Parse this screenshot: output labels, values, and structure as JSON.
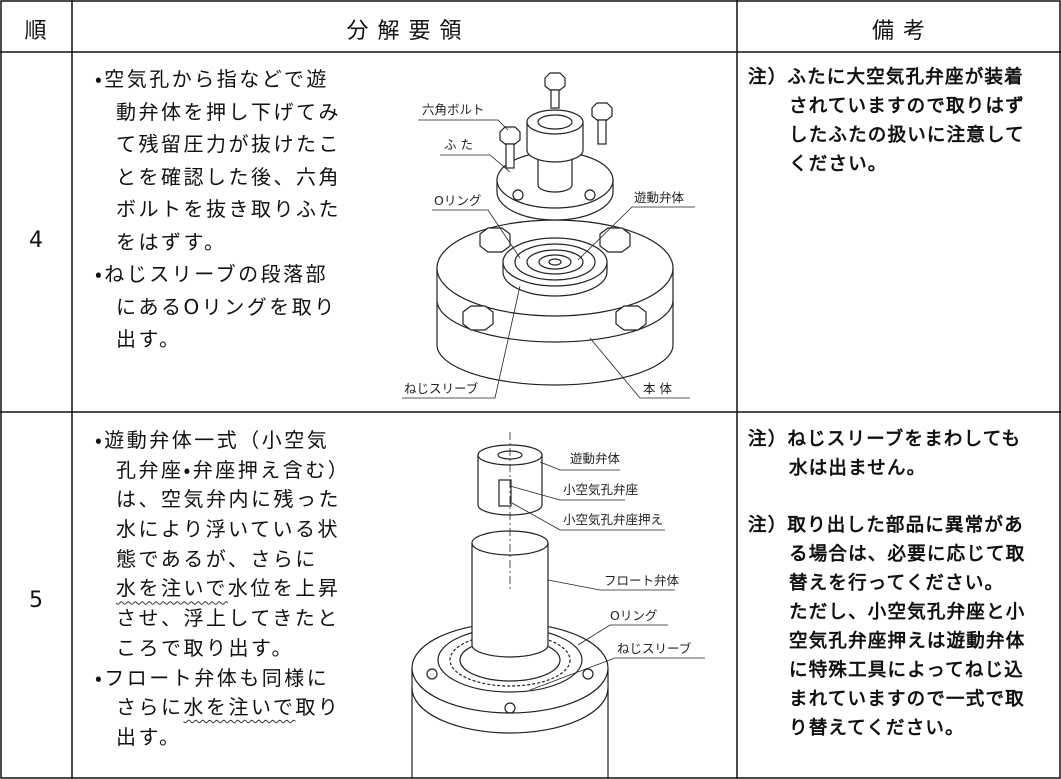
{
  "header": {
    "order": "順",
    "procedure": "分 解 要 領",
    "remarks": "備 考"
  },
  "rows": [
    {
      "step": "4",
      "procedure": [
        "・空気孔から指などで遊",
        "動弁体を押し下げてみ",
        "て残留圧力が抜けたこ",
        "とを確認した後、六角",
        "ボルトを抜き取りふた",
        "をはずす。",
        "・ねじスリーブの段落部",
        "にあるOリングを取り",
        "出す。"
      ],
      "figure_labels": [
        "六角ボルト",
        "ふ た",
        "Oリング",
        "遊動弁体",
        "ねじスリーブ",
        "本 体"
      ],
      "remarks": [
        [
          "注）ふたに大空気孔弁座が装着",
          "されていますので取りはず",
          "したふたの扱いに注意して",
          "ください。"
        ]
      ]
    },
    {
      "step": "5",
      "procedure": [
        "・遊動弁体一式（小空気",
        "孔弁座・弁座押え含む）",
        "は、空気弁内に残った",
        "水により浮いている状",
        "態であるが、さらに",
        [
          "水を注いで",
          "水位を上昇"
        ],
        "させ、浮上してきたと",
        "ころで取り出す。",
        "・フロート弁体も同様に",
        [
          "さらに",
          "水を注いで",
          "取り"
        ],
        "出す。"
      ],
      "figure_labels": [
        "遊動弁体",
        "小空気孔弁座",
        "小空気孔弁座押え",
        "フロート弁体",
        "Oリング",
        "ねじスリーブ"
      ],
      "remarks": [
        [
          "注）ねじスリーブをまわしても",
          "水は出ません。"
        ],
        [
          "注）取り出した部品に異常があ",
          "る場合は、必要に応じて取",
          "替えを行ってください。",
          "ただし、小空気孔弁座と小",
          "空気孔弁座押えは遊動弁体",
          "に特殊工具によってねじ込",
          "まれていますので一式で取",
          "り替えてください。"
        ]
      ]
    }
  ]
}
